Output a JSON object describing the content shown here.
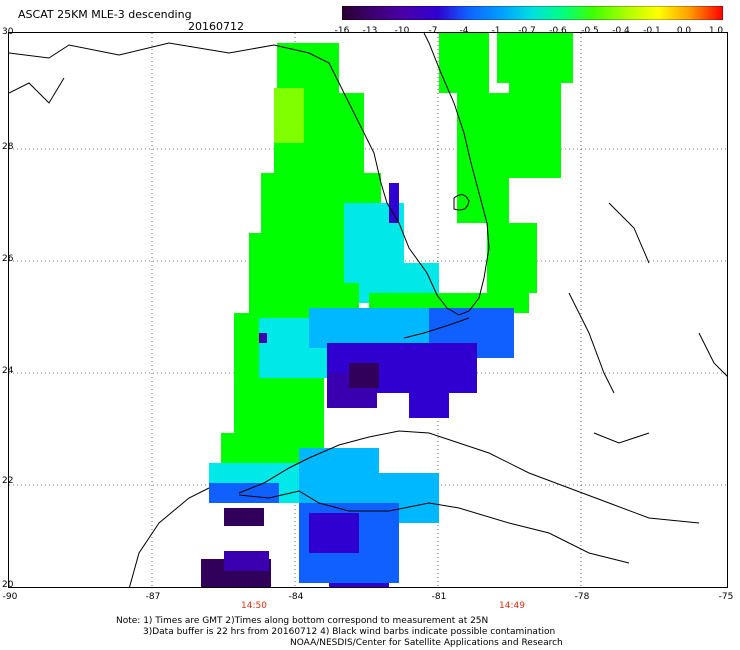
{
  "header": {
    "title": "ASCAT 25KM MLE-3 descending",
    "date": "20160712"
  },
  "colorbar": {
    "ticks": [
      "-16",
      "-13",
      "-10",
      "-7",
      "-4",
      "-1",
      "-0.7",
      "-0.6",
      "-0.5",
      "-0.4",
      "-0.1",
      "0.0",
      "1.0"
    ],
    "colors": [
      "#2a0030",
      "#3c0070",
      "#4a00a8",
      "#3000d0",
      "#1060ff",
      "#00a0ff",
      "#00e0e0",
      "#00ff80",
      "#40ff00",
      "#b0ff00",
      "#ffff00",
      "#ffa000",
      "#ff4000",
      "#ff0000"
    ]
  },
  "axes": {
    "x_ticks": [
      "-90",
      "-87",
      "-84",
      "-81",
      "-78",
      "-75"
    ],
    "y_ticks": [
      "30",
      "28",
      "26",
      "24",
      "22",
      "20"
    ]
  },
  "pass_times": [
    "14:50",
    "14:49"
  ],
  "notes": {
    "line1": "Note: 1) Times are GMT 2)Times along bottom correspond to measurement at 25N",
    "line2": "3)Data buffer is 22 hrs from 20160712 4) Black wind barbs indicate possible contamination",
    "line3": "NOAA/NESDIS/Center for Satellite Applications and Research"
  },
  "palette": {
    "green": "#00ff00",
    "lime": "#80ff00",
    "cyan": "#00e8e8",
    "azure": "#00b8ff",
    "blue": "#1060ff",
    "deepblue": "#2010d8",
    "violet": "#3a00b0",
    "purple": "#30005a"
  }
}
